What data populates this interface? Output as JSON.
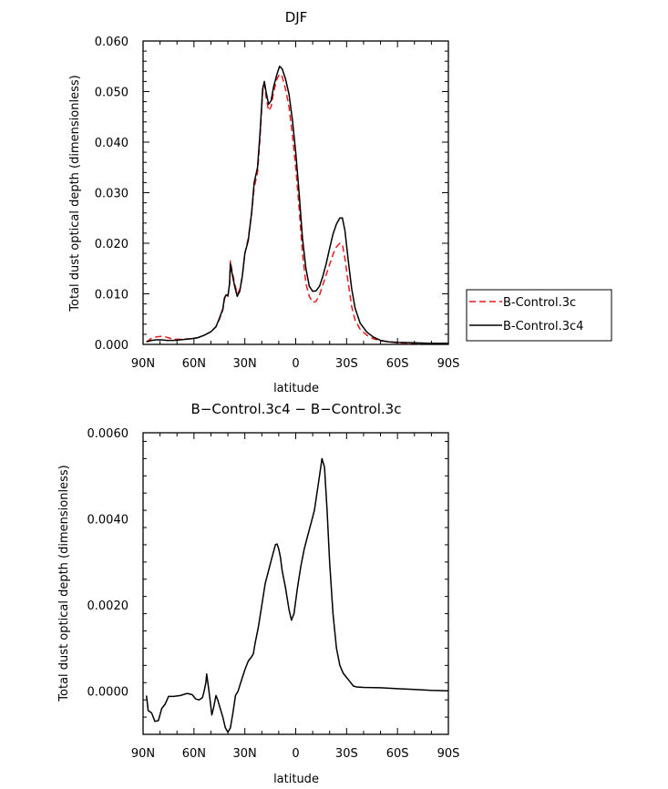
{
  "chart_data": [
    {
      "type": "line",
      "title": "DJF",
      "xlabel": "latitude",
      "ylabel": "Total dust optical depth (dimensionless)",
      "xlim": [
        90,
        -90
      ],
      "ylim": [
        0,
        0.06
      ],
      "xticks": [
        90,
        60,
        30,
        0,
        -30,
        -60,
        -90
      ],
      "xtick_labels": [
        "90N",
        "60N",
        "30N",
        "0",
        "30S",
        "60S",
        "90S"
      ],
      "yticks": [
        0,
        0.01,
        0.02,
        0.03,
        0.04,
        0.05,
        0.06
      ],
      "ytick_labels": [
        "0.000",
        "0.010",
        "0.020",
        "0.030",
        "0.040",
        "0.050",
        "0.060"
      ],
      "legend_position": "right",
      "series": [
        {
          "name": "B-Control.3c",
          "color": "#e8191c",
          "dash": "dashed",
          "points": [
            [
              88,
              0.0005
            ],
            [
              85,
              0.0012
            ],
            [
              82,
              0.0015
            ],
            [
              79,
              0.0016
            ],
            [
              76,
              0.0014
            ],
            [
              72,
              0.001
            ],
            [
              68,
              0.001
            ],
            [
              62,
              0.0011
            ],
            [
              58,
              0.0013
            ],
            [
              54,
              0.0018
            ],
            [
              50,
              0.0025
            ],
            [
              47,
              0.0035
            ],
            [
              45,
              0.005
            ],
            [
              43,
              0.0068
            ],
            [
              42,
              0.009
            ],
            [
              41,
              0.0098
            ],
            [
              40,
              0.0095
            ],
            [
              39,
              0.012
            ],
            [
              38.5,
              0.0165
            ],
            [
              37.5,
              0.0145
            ],
            [
              36,
              0.012
            ],
            [
              34.5,
              0.01
            ],
            [
              33,
              0.0108
            ],
            [
              31.5,
              0.0135
            ],
            [
              30,
              0.018
            ],
            [
              28,
              0.021
            ],
            [
              26,
              0.026
            ],
            [
              24.5,
              0.031
            ],
            [
              22.5,
              0.034
            ],
            [
              21,
              0.041
            ],
            [
              19.5,
              0.05
            ],
            [
              18.5,
              0.0515
            ],
            [
              17.5,
              0.049
            ],
            [
              16,
              0.0462
            ],
            [
              14.5,
              0.047
            ],
            [
              13,
              0.05
            ],
            [
              11,
              0.0525
            ],
            [
              9.5,
              0.0535
            ],
            [
              8,
              0.053
            ],
            [
              6,
              0.0505
            ],
            [
              4,
              0.047
            ],
            [
              2,
              0.0415
            ],
            [
              0,
              0.035
            ],
            [
              -2,
              0.027
            ],
            [
              -4,
              0.018
            ],
            [
              -6,
              0.012
            ],
            [
              -8,
              0.0095
            ],
            [
              -10,
              0.0083
            ],
            [
              -12,
              0.0085
            ],
            [
              -14,
              0.0098
            ],
            [
              -16,
              0.0118
            ],
            [
              -18,
              0.0138
            ],
            [
              -20,
              0.0158
            ],
            [
              -22,
              0.0178
            ],
            [
              -24,
              0.0193
            ],
            [
              -26,
              0.02
            ],
            [
              -27.5,
              0.0198
            ],
            [
              -29,
              0.017
            ],
            [
              -31,
              0.012
            ],
            [
              -33,
              0.0075
            ],
            [
              -35,
              0.0048
            ],
            [
              -38,
              0.003
            ],
            [
              -42,
              0.0018
            ],
            [
              -46,
              0.0011
            ],
            [
              -50,
              0.0007
            ],
            [
              -55,
              0.0005
            ],
            [
              -60,
              0.0003
            ],
            [
              -70,
              0.0002
            ],
            [
              -80,
              0.0002
            ],
            [
              -90,
              0.0002
            ]
          ]
        },
        {
          "name": "B-Control.3c4",
          "color": "#000000",
          "dash": "solid",
          "points": [
            [
              88,
              0.0005
            ],
            [
              85,
              0.0008
            ],
            [
              82,
              0.0009
            ],
            [
              79,
              0.0009
            ],
            [
              76,
              0.0008
            ],
            [
              72,
              0.0008
            ],
            [
              68,
              0.0009
            ],
            [
              62,
              0.0011
            ],
            [
              58,
              0.0013
            ],
            [
              54,
              0.0018
            ],
            [
              50,
              0.0025
            ],
            [
              47,
              0.0035
            ],
            [
              45,
              0.0052
            ],
            [
              43,
              0.007
            ],
            [
              42,
              0.0092
            ],
            [
              41,
              0.0098
            ],
            [
              40,
              0.0096
            ],
            [
              39,
              0.012
            ],
            [
              38.5,
              0.016
            ],
            [
              37.5,
              0.014
            ],
            [
              36,
              0.0115
            ],
            [
              34.5,
              0.0095
            ],
            [
              33,
              0.0105
            ],
            [
              31.5,
              0.0135
            ],
            [
              30,
              0.018
            ],
            [
              28,
              0.0205
            ],
            [
              26,
              0.026
            ],
            [
              24.5,
              0.032
            ],
            [
              22.5,
              0.035
            ],
            [
              21,
              0.042
            ],
            [
              19.5,
              0.0505
            ],
            [
              18.5,
              0.052
            ],
            [
              17.5,
              0.05
            ],
            [
              16,
              0.0475
            ],
            [
              14.5,
              0.0482
            ],
            [
              13,
              0.051
            ],
            [
              11,
              0.0535
            ],
            [
              9.5,
              0.055
            ],
            [
              8,
              0.0545
            ],
            [
              6,
              0.0525
            ],
            [
              4,
              0.0495
            ],
            [
              2,
              0.0445
            ],
            [
              0,
              0.038
            ],
            [
              -2,
              0.03
            ],
            [
              -4,
              0.021
            ],
            [
              -6,
              0.015
            ],
            [
              -8,
              0.0115
            ],
            [
              -10,
              0.0105
            ],
            [
              -12,
              0.0106
            ],
            [
              -14,
              0.0115
            ],
            [
              -16,
              0.0135
            ],
            [
              -18,
              0.016
            ],
            [
              -20,
              0.019
            ],
            [
              -22,
              0.0218
            ],
            [
              -24,
              0.0238
            ],
            [
              -26,
              0.025
            ],
            [
              -27.5,
              0.025
            ],
            [
              -29,
              0.0225
            ],
            [
              -31,
              0.0165
            ],
            [
              -33,
              0.011
            ],
            [
              -35,
              0.0072
            ],
            [
              -38,
              0.0042
            ],
            [
              -42,
              0.0024
            ],
            [
              -46,
              0.0014
            ],
            [
              -50,
              0.0008
            ],
            [
              -55,
              0.0005
            ],
            [
              -60,
              0.0004
            ],
            [
              -70,
              0.0003
            ],
            [
              -80,
              0.0002
            ],
            [
              -90,
              0.0002
            ]
          ]
        }
      ]
    },
    {
      "type": "line",
      "title": "B−Control.3c4 − B−Control.3c",
      "xlabel": "latitude",
      "ylabel": "Total dust optical depth (dimensionless)",
      "xlim": [
        90,
        -90
      ],
      "ylim": [
        -0.001,
        0.006
      ],
      "xticks": [
        90,
        60,
        30,
        0,
        -30,
        -60,
        -90
      ],
      "xtick_labels": [
        "90N",
        "60N",
        "30N",
        "0",
        "30S",
        "60S",
        "90S"
      ],
      "yticks": [
        0,
        0.002,
        0.004,
        0.006
      ],
      "ytick_labels": [
        "0.0000",
        "0.0020",
        "0.0040",
        "0.0060"
      ],
      "series": [
        {
          "name": "",
          "color": "#000000",
          "dash": "solid",
          "points": [
            [
              88,
              -0.0001
            ],
            [
              87,
              -0.00045
            ],
            [
              85,
              -0.0005
            ],
            [
              83,
              -0.0007
            ],
            [
              81,
              -0.00068
            ],
            [
              79,
              -0.0004
            ],
            [
              77,
              -0.0003
            ],
            [
              75,
              -0.00012
            ],
            [
              72,
              -0.00012
            ],
            [
              68,
              -0.0001
            ],
            [
              64,
              -5e-05
            ],
            [
              61,
              -8e-05
            ],
            [
              59,
              -0.00018
            ],
            [
              57,
              -0.0002
            ],
            [
              55,
              -0.00015
            ],
            [
              54,
              0.0
            ],
            [
              53,
              0.0002
            ],
            [
              52.5,
              0.0004
            ],
            [
              51.5,
              0.0001
            ],
            [
              50.5,
              -0.0002
            ],
            [
              49.5,
              -0.00055
            ],
            [
              48.5,
              -0.0004
            ],
            [
              47,
              -0.0001
            ],
            [
              46,
              -0.0002
            ],
            [
              44.5,
              -0.0004
            ],
            [
              43,
              -0.0006
            ],
            [
              41.5,
              -0.00085
            ],
            [
              40,
              -0.00095
            ],
            [
              38.5,
              -0.00085
            ],
            [
              37,
              -0.0005
            ],
            [
              35.5,
              -0.0001
            ],
            [
              34,
              0.0
            ],
            [
              32,
              0.00025
            ],
            [
              30,
              0.0005
            ],
            [
              28,
              0.0007
            ],
            [
              26,
              0.0008
            ],
            [
              25,
              0.00087
            ],
            [
              24,
              0.0011
            ],
            [
              22,
              0.0015
            ],
            [
              20,
              0.002
            ],
            [
              18,
              0.0025
            ],
            [
              16,
              0.0028
            ],
            [
              14,
              0.0031
            ],
            [
              12,
              0.0034
            ],
            [
              11,
              0.00342
            ],
            [
              10,
              0.0033
            ],
            [
              9,
              0.0031
            ],
            [
              8,
              0.0028
            ],
            [
              6,
              0.0024
            ],
            [
              4,
              0.0019
            ],
            [
              2.5,
              0.00165
            ],
            [
              1,
              0.0018
            ],
            [
              -1,
              0.0024
            ],
            [
              -3,
              0.0029
            ],
            [
              -5,
              0.0033
            ],
            [
              -7,
              0.0036
            ],
            [
              -9,
              0.0039
            ],
            [
              -11,
              0.0042
            ],
            [
              -12.5,
              0.0046
            ],
            [
              -14,
              0.005
            ],
            [
              -15.5,
              0.0054
            ],
            [
              -17,
              0.0052
            ],
            [
              -18.5,
              0.0042
            ],
            [
              -20,
              0.003
            ],
            [
              -22,
              0.0018
            ],
            [
              -24,
              0.001
            ],
            [
              -26,
              0.0006
            ],
            [
              -28,
              0.00042
            ],
            [
              -30,
              0.00032
            ],
            [
              -32,
              0.00022
            ],
            [
              -34,
              0.00012
            ],
            [
              -36,
              0.0001
            ],
            [
              -40,
              9e-05
            ],
            [
              -50,
              8e-05
            ],
            [
              -60,
              6e-05
            ],
            [
              -70,
              4e-05
            ],
            [
              -80,
              2e-05
            ],
            [
              -90,
              1e-05
            ]
          ]
        }
      ]
    }
  ]
}
